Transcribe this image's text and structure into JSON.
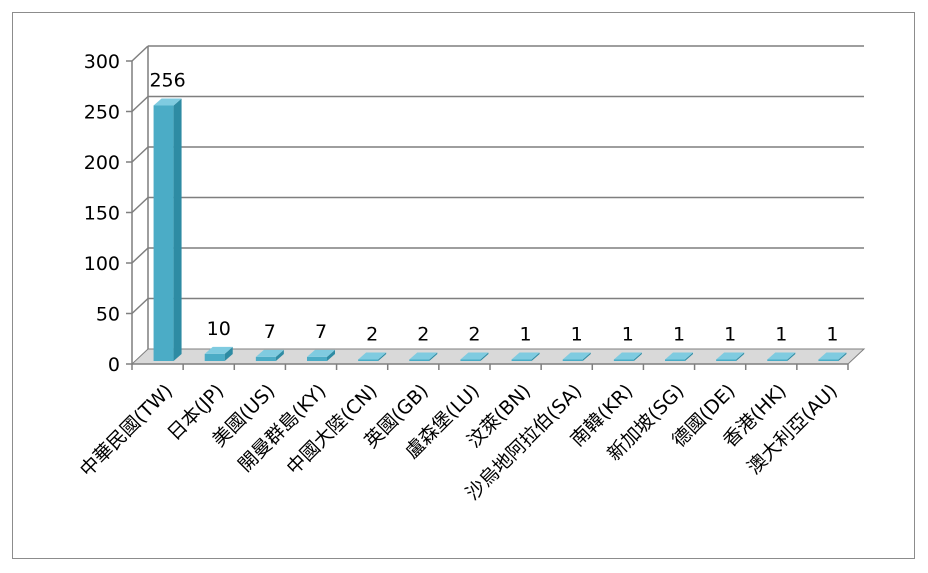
{
  "chart_data": {
    "type": "bar",
    "categories": [
      "中華民國(TW)",
      "日本(JP)",
      "美國(US)",
      "開曼群島(KY)",
      "中國大陸(CN)",
      "英國(GB)",
      "盧森堡(LU)",
      "汶萊(BN)",
      "沙烏地阿拉伯(SA)",
      "南韓(KR)",
      "新加坡(SG)",
      "德國(DE)",
      "香港(HK)",
      "澳大利亞(AU)"
    ],
    "values": [
      256,
      10,
      7,
      7,
      2,
      2,
      2,
      1,
      1,
      1,
      1,
      1,
      1,
      1
    ],
    "data_labels": [
      "256",
      "10",
      "7",
      "7",
      "2",
      "2",
      "2",
      "1",
      "1",
      "1",
      "1",
      "1",
      "1",
      "1"
    ],
    "y_ticks": [
      "0",
      "50",
      "100",
      "150",
      "200",
      "250",
      "300"
    ],
    "ylim": [
      0,
      300
    ],
    "title": "",
    "xlabel": "",
    "ylabel": "",
    "grid": true,
    "legend": "none",
    "style": "3d-column",
    "colors": {
      "bar_front": "#4bacc6",
      "bar_side": "#2e8ba3",
      "bar_top": "#7fcbe0",
      "grid": "#7f7f7f"
    }
  }
}
